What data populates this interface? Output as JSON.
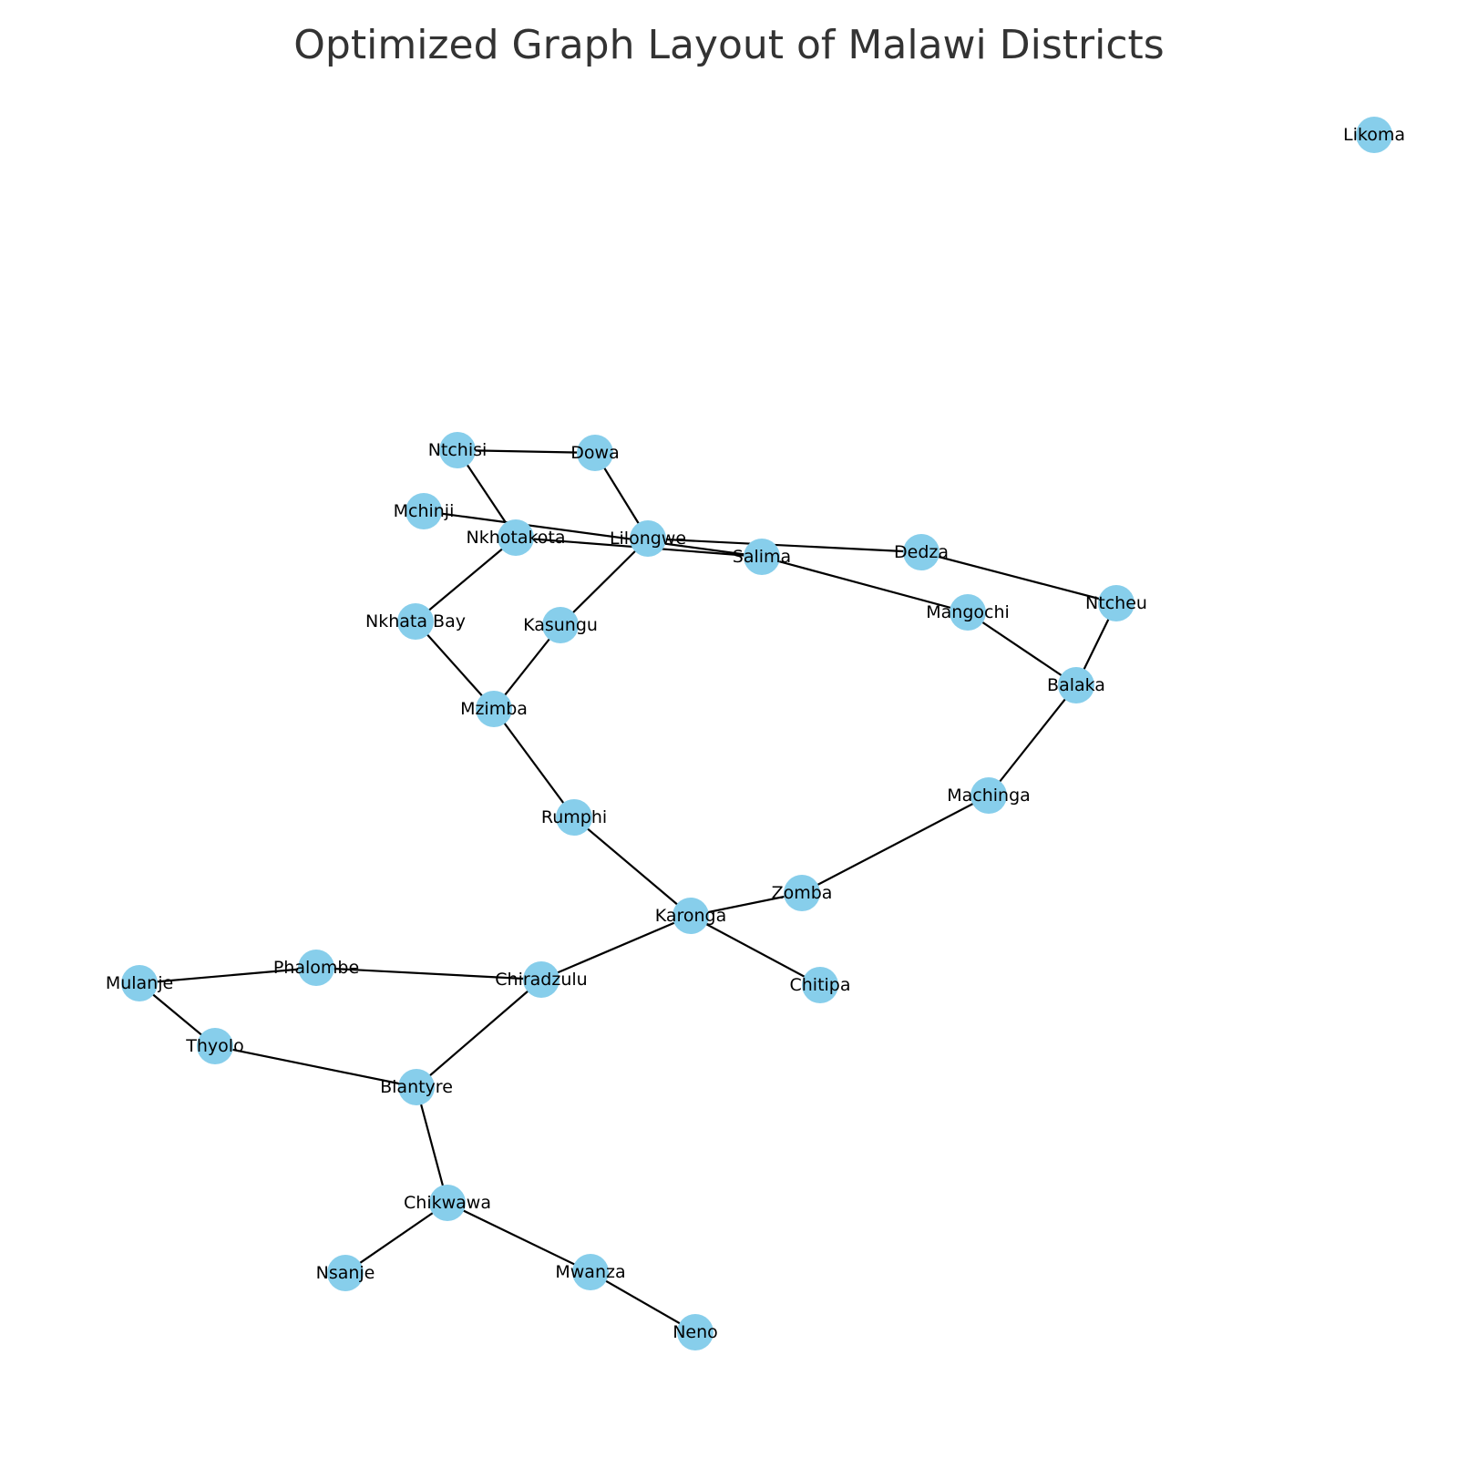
{
  "title": "Optimized Graph Layout of Malawi Districts",
  "colors": {
    "node": "#87ceeb",
    "edge": "#000000",
    "title": "#333333"
  },
  "nodes": [
    {
      "id": "Likoma",
      "label": "Likoma"
    },
    {
      "id": "Ntchisi",
      "label": "Ntchisi"
    },
    {
      "id": "Dowa",
      "label": "Dowa"
    },
    {
      "id": "Mchinji",
      "label": "Mchinji"
    },
    {
      "id": "Nkhotakota",
      "label": "Nkhotakota"
    },
    {
      "id": "Lilongwe",
      "label": "Lilongwe"
    },
    {
      "id": "Salima",
      "label": "Salima"
    },
    {
      "id": "Dedza",
      "label": "Dedza"
    },
    {
      "id": "Ntcheu",
      "label": "Ntcheu"
    },
    {
      "id": "Mangochi",
      "label": "Mangochi"
    },
    {
      "id": "Nkhata Bay",
      "label": "Nkhata Bay"
    },
    {
      "id": "Kasungu",
      "label": "Kasungu"
    },
    {
      "id": "Balaka",
      "label": "Balaka"
    },
    {
      "id": "Mzimba",
      "label": "Mzimba"
    },
    {
      "id": "Machinga",
      "label": "Machinga"
    },
    {
      "id": "Rumphi",
      "label": "Rumphi"
    },
    {
      "id": "Zomba",
      "label": "Zomba"
    },
    {
      "id": "Karonga",
      "label": "Karonga"
    },
    {
      "id": "Chitipa",
      "label": "Chitipa"
    },
    {
      "id": "Phalombe",
      "label": "Phalombe"
    },
    {
      "id": "Chiradzulu",
      "label": "Chiradzulu"
    },
    {
      "id": "Mulanje",
      "label": "Mulanje"
    },
    {
      "id": "Thyolo",
      "label": "Thyolo"
    },
    {
      "id": "Blantyre",
      "label": "Blantyre"
    },
    {
      "id": "Chikwawa",
      "label": "Chikwawa"
    },
    {
      "id": "Nsanje",
      "label": "Nsanje"
    },
    {
      "id": "Mwanza",
      "label": "Mwanza"
    },
    {
      "id": "Neno",
      "label": "Neno"
    }
  ],
  "edges": [
    [
      "Ntchisi",
      "Dowa"
    ],
    [
      "Ntchisi",
      "Nkhotakota"
    ],
    [
      "Dowa",
      "Lilongwe"
    ],
    [
      "Mchinji",
      "Salima"
    ],
    [
      "Nkhotakota",
      "Salima"
    ],
    [
      "Lilongwe",
      "Dedza"
    ],
    [
      "Dedza",
      "Ntcheu"
    ],
    [
      "Salima",
      "Mangochi"
    ],
    [
      "Nkhotakota",
      "Nkhata Bay"
    ],
    [
      "Lilongwe",
      "Kasungu"
    ],
    [
      "Nkhata Bay",
      "Mzimba"
    ],
    [
      "Kasungu",
      "Mzimba"
    ],
    [
      "Mangochi",
      "Balaka"
    ],
    [
      "Ntcheu",
      "Balaka"
    ],
    [
      "Balaka",
      "Machinga"
    ],
    [
      "Mzimba",
      "Rumphi"
    ],
    [
      "Rumphi",
      "Karonga"
    ],
    [
      "Machinga",
      "Zomba"
    ],
    [
      "Zomba",
      "Karonga"
    ],
    [
      "Karonga",
      "Chitipa"
    ],
    [
      "Karonga",
      "Chiradzulu"
    ],
    [
      "Mulanje",
      "Phalombe"
    ],
    [
      "Phalombe",
      "Chiradzulu"
    ],
    [
      "Mulanje",
      "Thyolo"
    ],
    [
      "Thyolo",
      "Blantyre"
    ],
    [
      "Chiradzulu",
      "Blantyre"
    ],
    [
      "Blantyre",
      "Chikwawa"
    ],
    [
      "Chikwawa",
      "Nsanje"
    ],
    [
      "Chikwawa",
      "Mwanza"
    ],
    [
      "Mwanza",
      "Neno"
    ]
  ]
}
